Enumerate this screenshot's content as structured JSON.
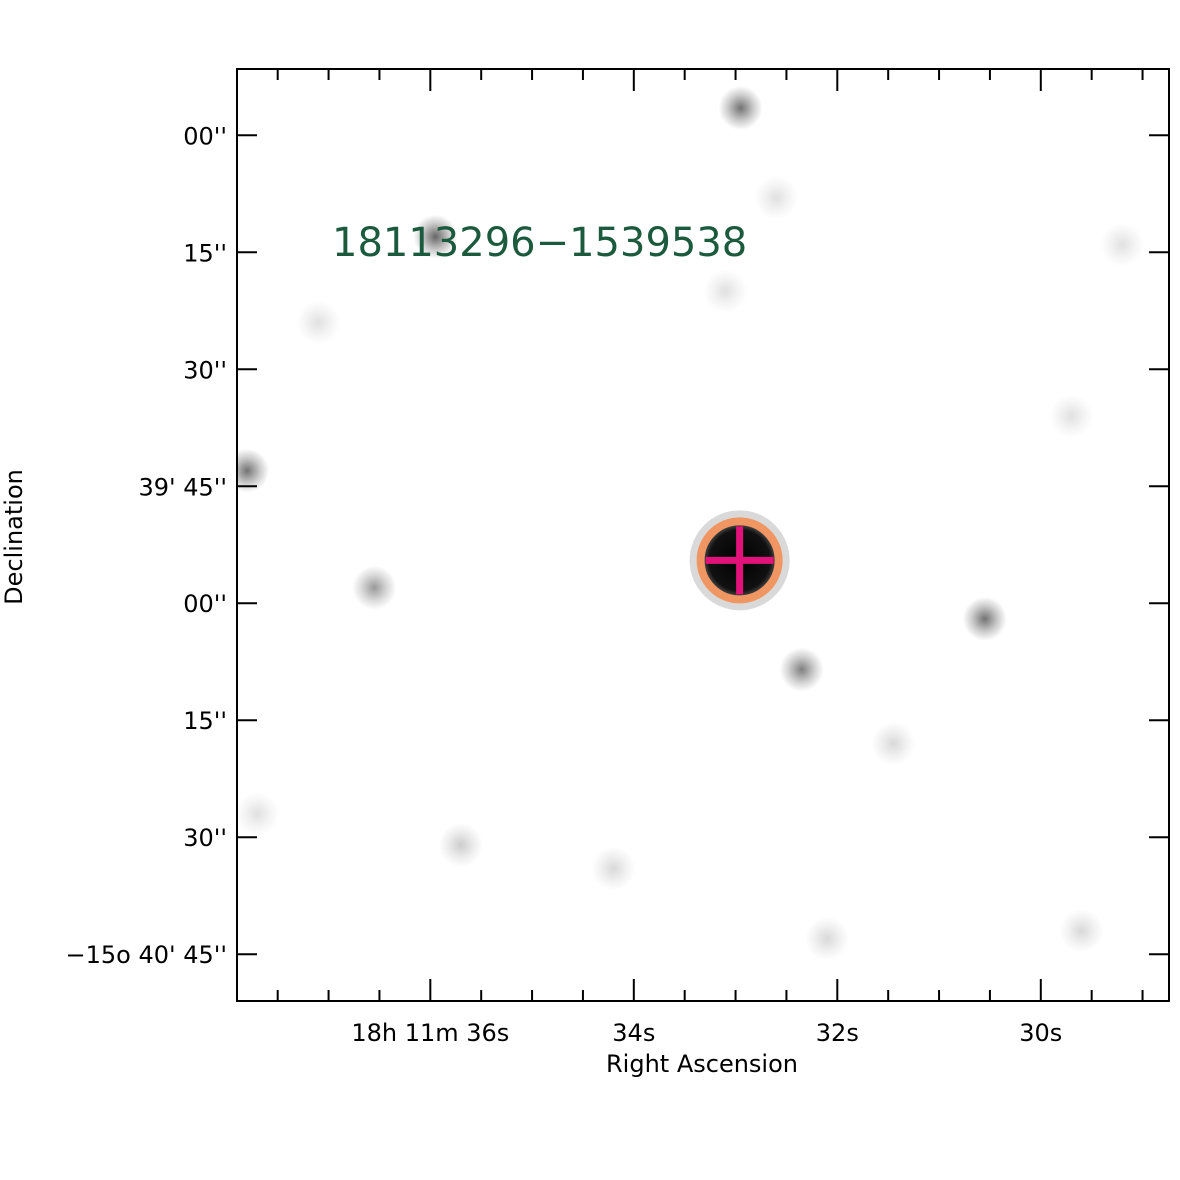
{
  "chart_data": {
    "type": "scatter",
    "title": "",
    "xlabel": "Right Ascension",
    "ylabel": "Declination",
    "source_label": "18113296−1539538",
    "grid": false,
    "x_axis": {
      "units": "seconds of RA (18h 11m)",
      "range": [
        37.9,
        28.74
      ],
      "major_ticks": [
        {
          "value": 36,
          "text": "18h 11m 36s"
        },
        {
          "value": 34,
          "text": "34s"
        },
        {
          "value": 32,
          "text": "32s"
        },
        {
          "value": 30,
          "text": "30s"
        }
      ],
      "minor_ticks": [
        37.5,
        37.0,
        36.5,
        35.5,
        35.0,
        34.5,
        33.5,
        33.0,
        32.5,
        31.5,
        31.0,
        30.5,
        29.5,
        29.0
      ]
    },
    "y_axis": {
      "units": "arcsec relative to -15° 39' 00\"",
      "range": [
        -111,
        8.5
      ],
      "major_ticks": [
        {
          "value": 0,
          "text": "00''"
        },
        {
          "value": -15,
          "text": "15''"
        },
        {
          "value": -30,
          "text": "30''"
        },
        {
          "value": -45,
          "text": "39' 45''"
        },
        {
          "value": -60,
          "text": "00''"
        },
        {
          "value": -75,
          "text": "15''"
        },
        {
          "value": -90,
          "text": "30''"
        },
        {
          "value": -105,
          "text": "−15o 40' 45''"
        }
      ]
    },
    "points": [
      {
        "name": "target",
        "x": 32.96,
        "y": -54.5,
        "marker": "cross",
        "ring_color": "#ef9662",
        "cross_color": "#e3127a",
        "core_color": "#000000"
      }
    ],
    "background_sources": [
      {
        "x": 32.95,
        "y": 3.5,
        "intensity": 0.55
      },
      {
        "x": 35.95,
        "y": -13,
        "intensity": 0.6
      },
      {
        "x": 37.8,
        "y": -43,
        "intensity": 0.55
      },
      {
        "x": 36.55,
        "y": -58,
        "intensity": 0.4
      },
      {
        "x": 30.55,
        "y": -62,
        "intensity": 0.55
      },
      {
        "x": 32.35,
        "y": -68.5,
        "intensity": 0.5
      },
      {
        "x": 35.7,
        "y": -91,
        "intensity": 0.2
      },
      {
        "x": 34.2,
        "y": -94,
        "intensity": 0.15
      },
      {
        "x": 32.1,
        "y": -103,
        "intensity": 0.15
      },
      {
        "x": 29.6,
        "y": -102,
        "intensity": 0.15
      },
      {
        "x": 31.45,
        "y": -78,
        "intensity": 0.15
      },
      {
        "x": 37.1,
        "y": -24,
        "intensity": 0.12
      },
      {
        "x": 33.1,
        "y": -20,
        "intensity": 0.12
      },
      {
        "x": 32.6,
        "y": -8,
        "intensity": 0.12
      },
      {
        "x": 29.2,
        "y": -14,
        "intensity": 0.12
      },
      {
        "x": 29.7,
        "y": -36,
        "intensity": 0.12
      },
      {
        "x": 37.7,
        "y": -87,
        "intensity": 0.12
      }
    ]
  },
  "colors": {
    "frame": "#000000",
    "label_green": "#1c5a3e",
    "ring": "#ef9662",
    "cross": "#e3127a"
  }
}
